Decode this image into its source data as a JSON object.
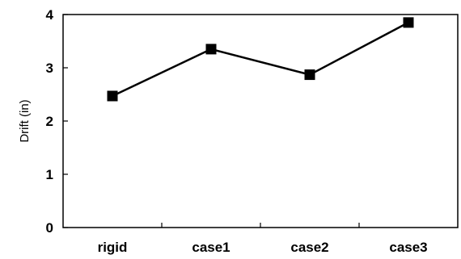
{
  "chart_data": {
    "type": "line",
    "title": "",
    "xlabel": "",
    "ylabel": "Drift (in)",
    "categories": [
      "rigid",
      "case1",
      "case2",
      "case3"
    ],
    "series": [
      {
        "values": [
          2.47,
          3.35,
          2.87,
          3.85
        ]
      }
    ],
    "ylim": [
      0,
      4
    ],
    "yticks": [
      "0",
      "1",
      "2",
      "3",
      "4"
    ],
    "grid": false,
    "legend": "none",
    "marker": "square",
    "colors": {
      "line": "#000000",
      "marker": "#000000"
    }
  }
}
